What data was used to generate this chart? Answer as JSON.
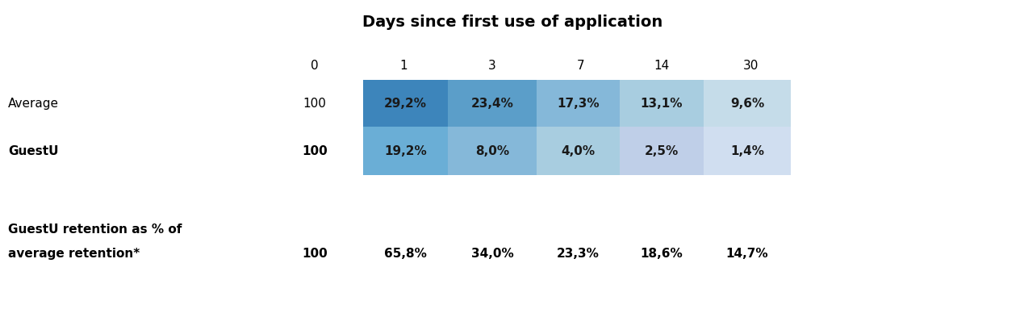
{
  "title": "Days since first use of application",
  "col_headers": [
    "0",
    "1",
    "3",
    "7",
    "14",
    "30"
  ],
  "values_average": [
    "100",
    "29,2%",
    "23,4%",
    "17,3%",
    "13,1%",
    "9,6%"
  ],
  "values_guestu": [
    "100",
    "19,2%",
    "8,0%",
    "4,0%",
    "2,5%",
    "1,4%"
  ],
  "label_average": "Average",
  "label_guestu": "GuestU",
  "footer_label_line1": "GuestU retention as % of",
  "footer_label_line2": "average retention*",
  "footer_values": [
    "100",
    "65,8%",
    "34,0%",
    "23,3%",
    "18,6%",
    "14,7%"
  ],
  "avg_cell_colors": [
    "#2B6CA8",
    "#3D85BB",
    "#5B9EC9",
    "#85B8D9",
    "#A8CDE0",
    "#C5DCE9"
  ],
  "guestu_cell_colors": [
    "#5B9EC9",
    "#6AAED6",
    "#85B8D9",
    "#A8CDE0",
    "#BFCFE8",
    "#D0DEF0"
  ],
  "bg_color": "#ffffff",
  "cell_text_color": "#1a1a1a",
  "dark_text_color": "#000000"
}
